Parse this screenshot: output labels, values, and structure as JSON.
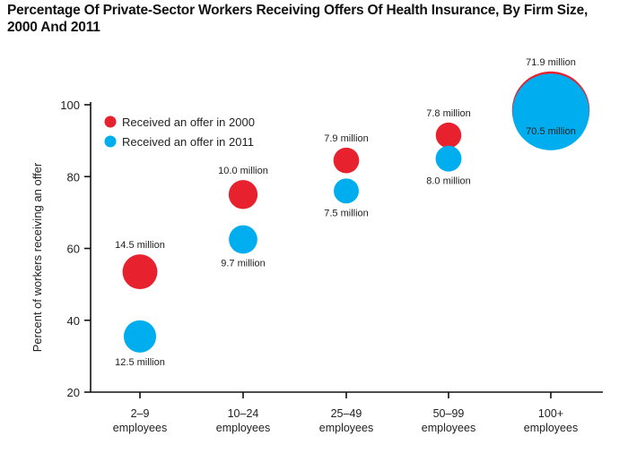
{
  "chart_data": {
    "type": "scatter",
    "title": "Percentage Of Private-Sector Workers Receiving Offers Of Health Insurance, By Firm Size, 2000 And 2011",
    "title_line1": "Percentage Of Private-Sector Workers Receiving Offers Of Health Insurance, By Firm Size,",
    "title_line2": "2000 And 2011",
    "xlabel": "",
    "ylabel": "Percent of workers receiving an offer",
    "ylim": [
      20,
      100
    ],
    "yticks": [
      20,
      40,
      60,
      80,
      100
    ],
    "categories": [
      {
        "line1": "2–9",
        "line2": "employees"
      },
      {
        "line1": "10–24",
        "line2": "employees"
      },
      {
        "line1": "25–49",
        "line2": "employees"
      },
      {
        "line1": "50–99",
        "line2": "employees"
      },
      {
        "line1": "100+",
        "line2": "employees"
      }
    ],
    "series": [
      {
        "name": "Received an offer in 2000",
        "color": "#e8212e",
        "values": [
          53.5,
          75,
          84.5,
          91.5,
          98.5
        ],
        "workers_millions": [
          14.5,
          10.0,
          7.9,
          7.8,
          71.9
        ],
        "labels": [
          "14.5 million",
          "10.0 million",
          "7.9 million",
          "7.8 million",
          "71.9 million"
        ]
      },
      {
        "name": "Received an offer in 2011",
        "color": "#00aeef",
        "values": [
          35.5,
          62.5,
          76,
          85,
          98
        ],
        "workers_millions": [
          12.5,
          9.7,
          7.5,
          8.0,
          70.5
        ],
        "labels": [
          "12.5 million",
          "9.7 million",
          "7.5 million",
          "8.0 million",
          "70.5 million"
        ]
      }
    ],
    "legend_position": "top-left"
  }
}
